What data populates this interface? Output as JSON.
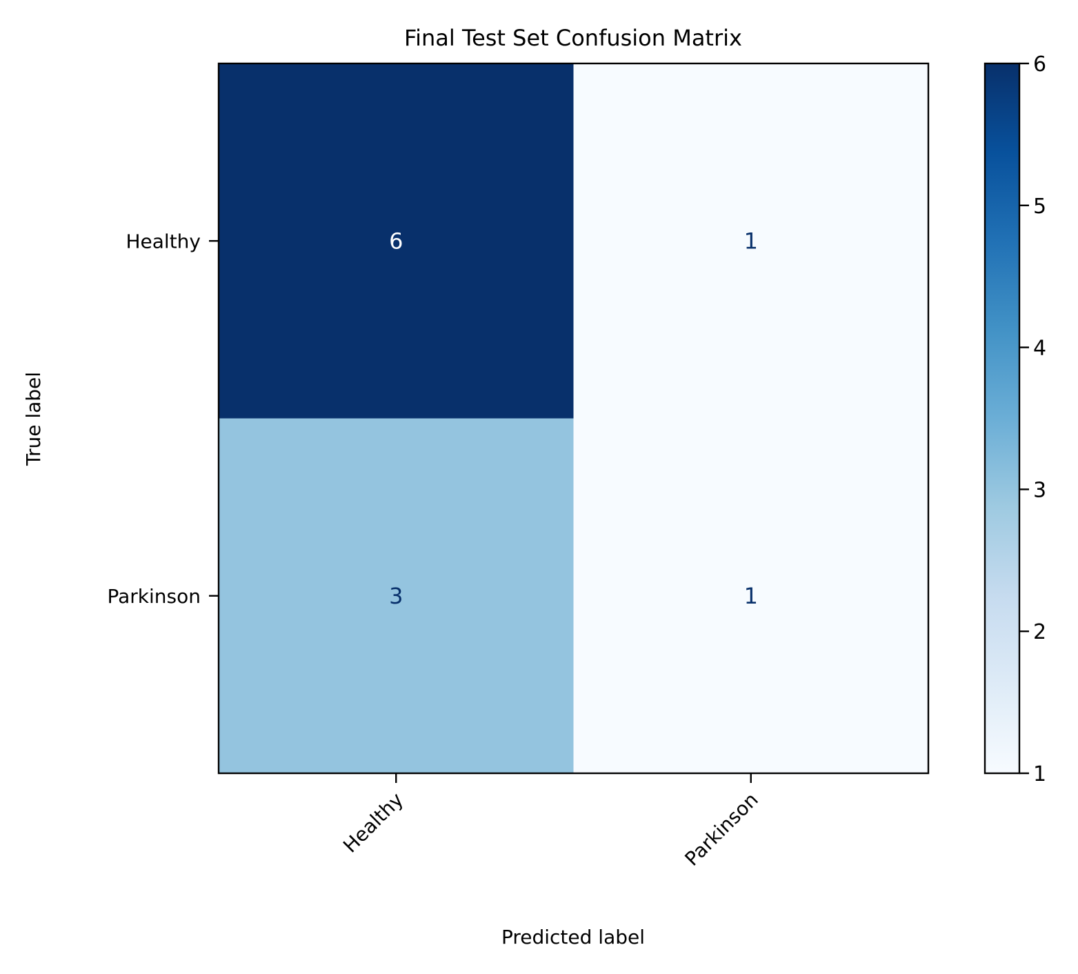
{
  "chart_data": {
    "type": "heatmap",
    "title": "Final Test Set Confusion Matrix",
    "xlabel": "Predicted label",
    "ylabel": "True label",
    "x_categories": [
      "Healthy",
      "Parkinson"
    ],
    "y_categories": [
      "Healthy",
      "Parkinson"
    ],
    "values": [
      [
        6,
        1
      ],
      [
        3,
        1
      ]
    ],
    "colormap": "Blues",
    "colorbar": {
      "min": 1,
      "max": 6,
      "ticks": [
        1,
        2,
        3,
        4,
        5,
        6
      ],
      "tick_labels": [
        "1",
        "2",
        "3",
        "4",
        "5",
        "6"
      ]
    },
    "colors": {
      "low": "#f7fbff",
      "high": "#08306b",
      "text_on_dark": "#ffffff",
      "text_on_light": "#08306b"
    },
    "x_tick_rotation_deg": 45,
    "grid": false
  }
}
